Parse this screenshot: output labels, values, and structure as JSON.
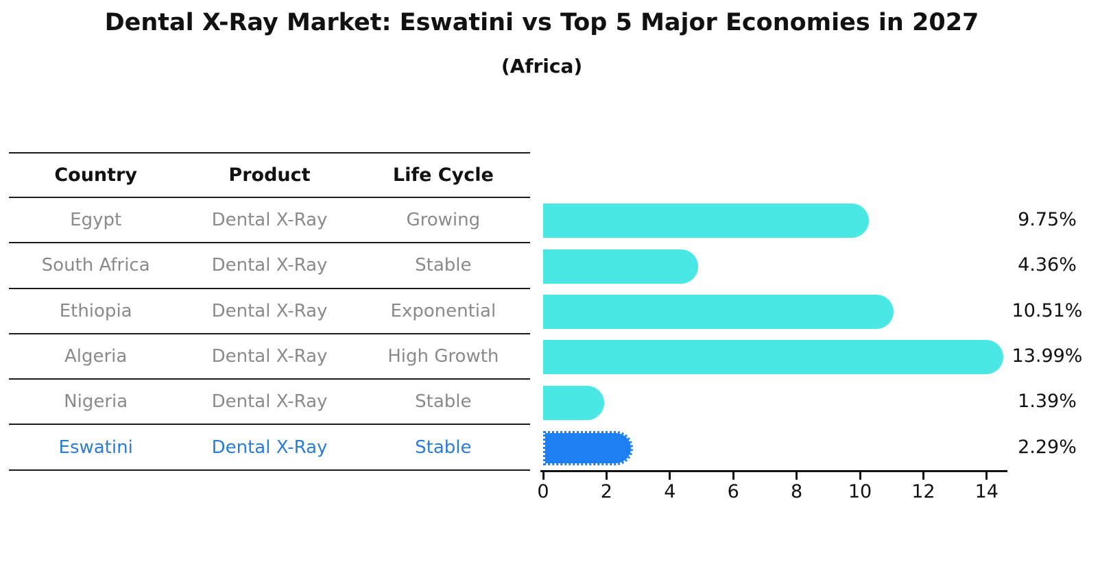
{
  "title": "Dental X-Ray Market: Eswatini vs Top 5 Major Economies in 2027",
  "subtitle": "(Africa)",
  "table": {
    "headers": [
      "Country",
      "Product",
      "Life Cycle"
    ],
    "rows": [
      {
        "country": "Egypt",
        "product": "Dental X-Ray",
        "life_cycle": "Growing"
      },
      {
        "country": "South Africa",
        "product": "Dental X-Ray",
        "life_cycle": "Stable"
      },
      {
        "country": "Ethiopia",
        "product": "Dental X-Ray",
        "life_cycle": "Exponential"
      },
      {
        "country": "Algeria",
        "product": "Dental X-Ray",
        "life_cycle": "High Growth"
      },
      {
        "country": "Nigeria",
        "product": "Dental X-Ray",
        "life_cycle": "Stable"
      },
      {
        "country": "Eswatini",
        "product": "Dental X-Ray",
        "life_cycle": "Stable"
      }
    ]
  },
  "chart_data": {
    "type": "bar",
    "orientation": "horizontal",
    "title": "Dental X-Ray Market: Eswatini vs Top 5 Major Economies in 2027",
    "subtitle": "(Africa)",
    "categories": [
      "Egypt",
      "South Africa",
      "Ethiopia",
      "Algeria",
      "Nigeria",
      "Eswatini"
    ],
    "values": [
      9.75,
      4.36,
      10.51,
      13.99,
      1.39,
      2.29
    ],
    "value_labels": [
      "9.75%",
      "4.36%",
      "10.51%",
      "13.99%",
      "1.39%",
      "2.29%"
    ],
    "unit": "%",
    "xlabel": "",
    "ylabel": "",
    "xlim": [
      0,
      14.6
    ],
    "xticks": [
      0,
      2,
      4,
      6,
      8,
      10,
      12,
      14
    ],
    "grid": false,
    "legend": "none",
    "bar_color": "#4BE7E5",
    "highlight_category": "Eswatini",
    "highlight_bar_color": "#1E7FF2",
    "highlight_bar_style": "dotted-outline",
    "highlight_text_color": "#2A7CD5"
  }
}
